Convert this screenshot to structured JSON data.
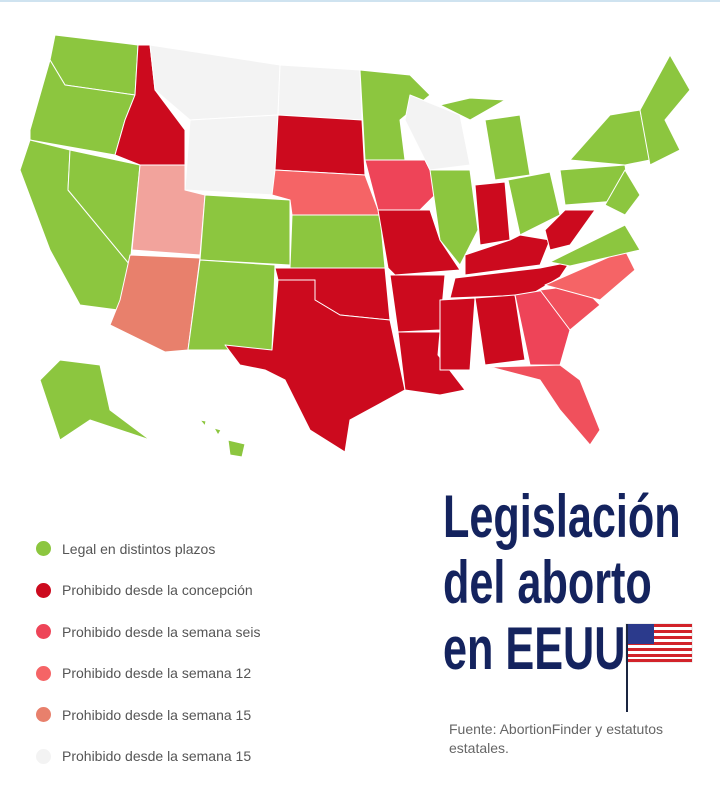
{
  "title_lines": [
    "Legislación",
    "del aborto",
    "en EEUU"
  ],
  "source": "Fuente: AbortionFinder y estatutos estatales.",
  "legend": [
    {
      "label": "Legal en distintos plazos",
      "color": "#8cc63f"
    },
    {
      "label": "Prohibido desde la concepción",
      "color": "#cc0a1e"
    },
    {
      "label": "Prohibido desde la semana seis",
      "color": "#ee4458"
    },
    {
      "label": "Prohibido desde la semana 12",
      "color": "#f56466"
    },
    {
      "label": "Prohibido desde la semana 15",
      "color": "#e8806c"
    },
    {
      "label": "Prohibido desde la semana 15",
      "color": "#f3f3f3"
    }
  ]
}
